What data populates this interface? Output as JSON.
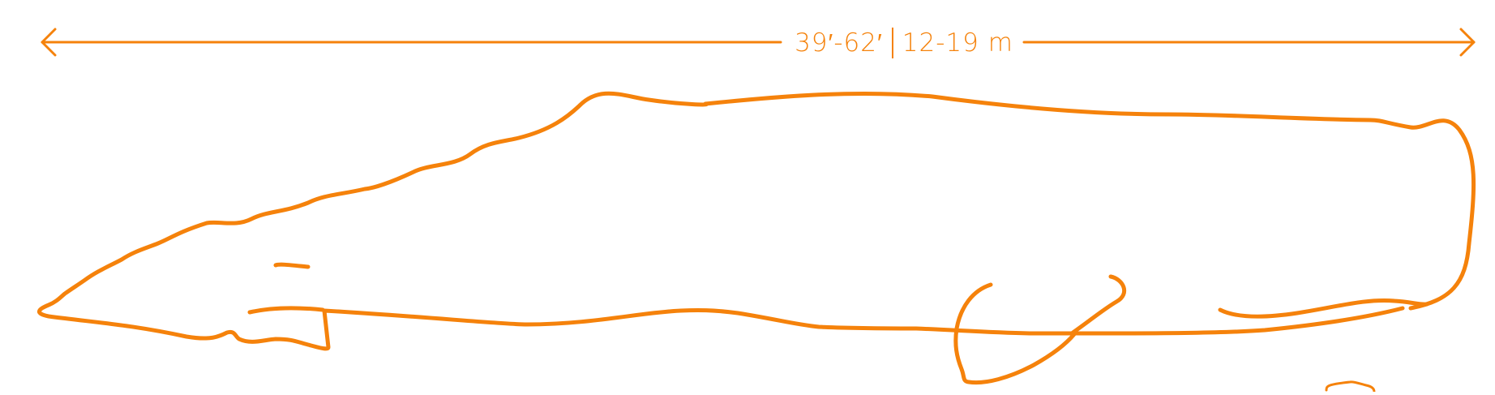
{
  "colors": {
    "accent": "#F5820B",
    "background": "#FFFFFF"
  },
  "dimension": {
    "imperial": "39′-62′",
    "metric": "12-19 m"
  }
}
